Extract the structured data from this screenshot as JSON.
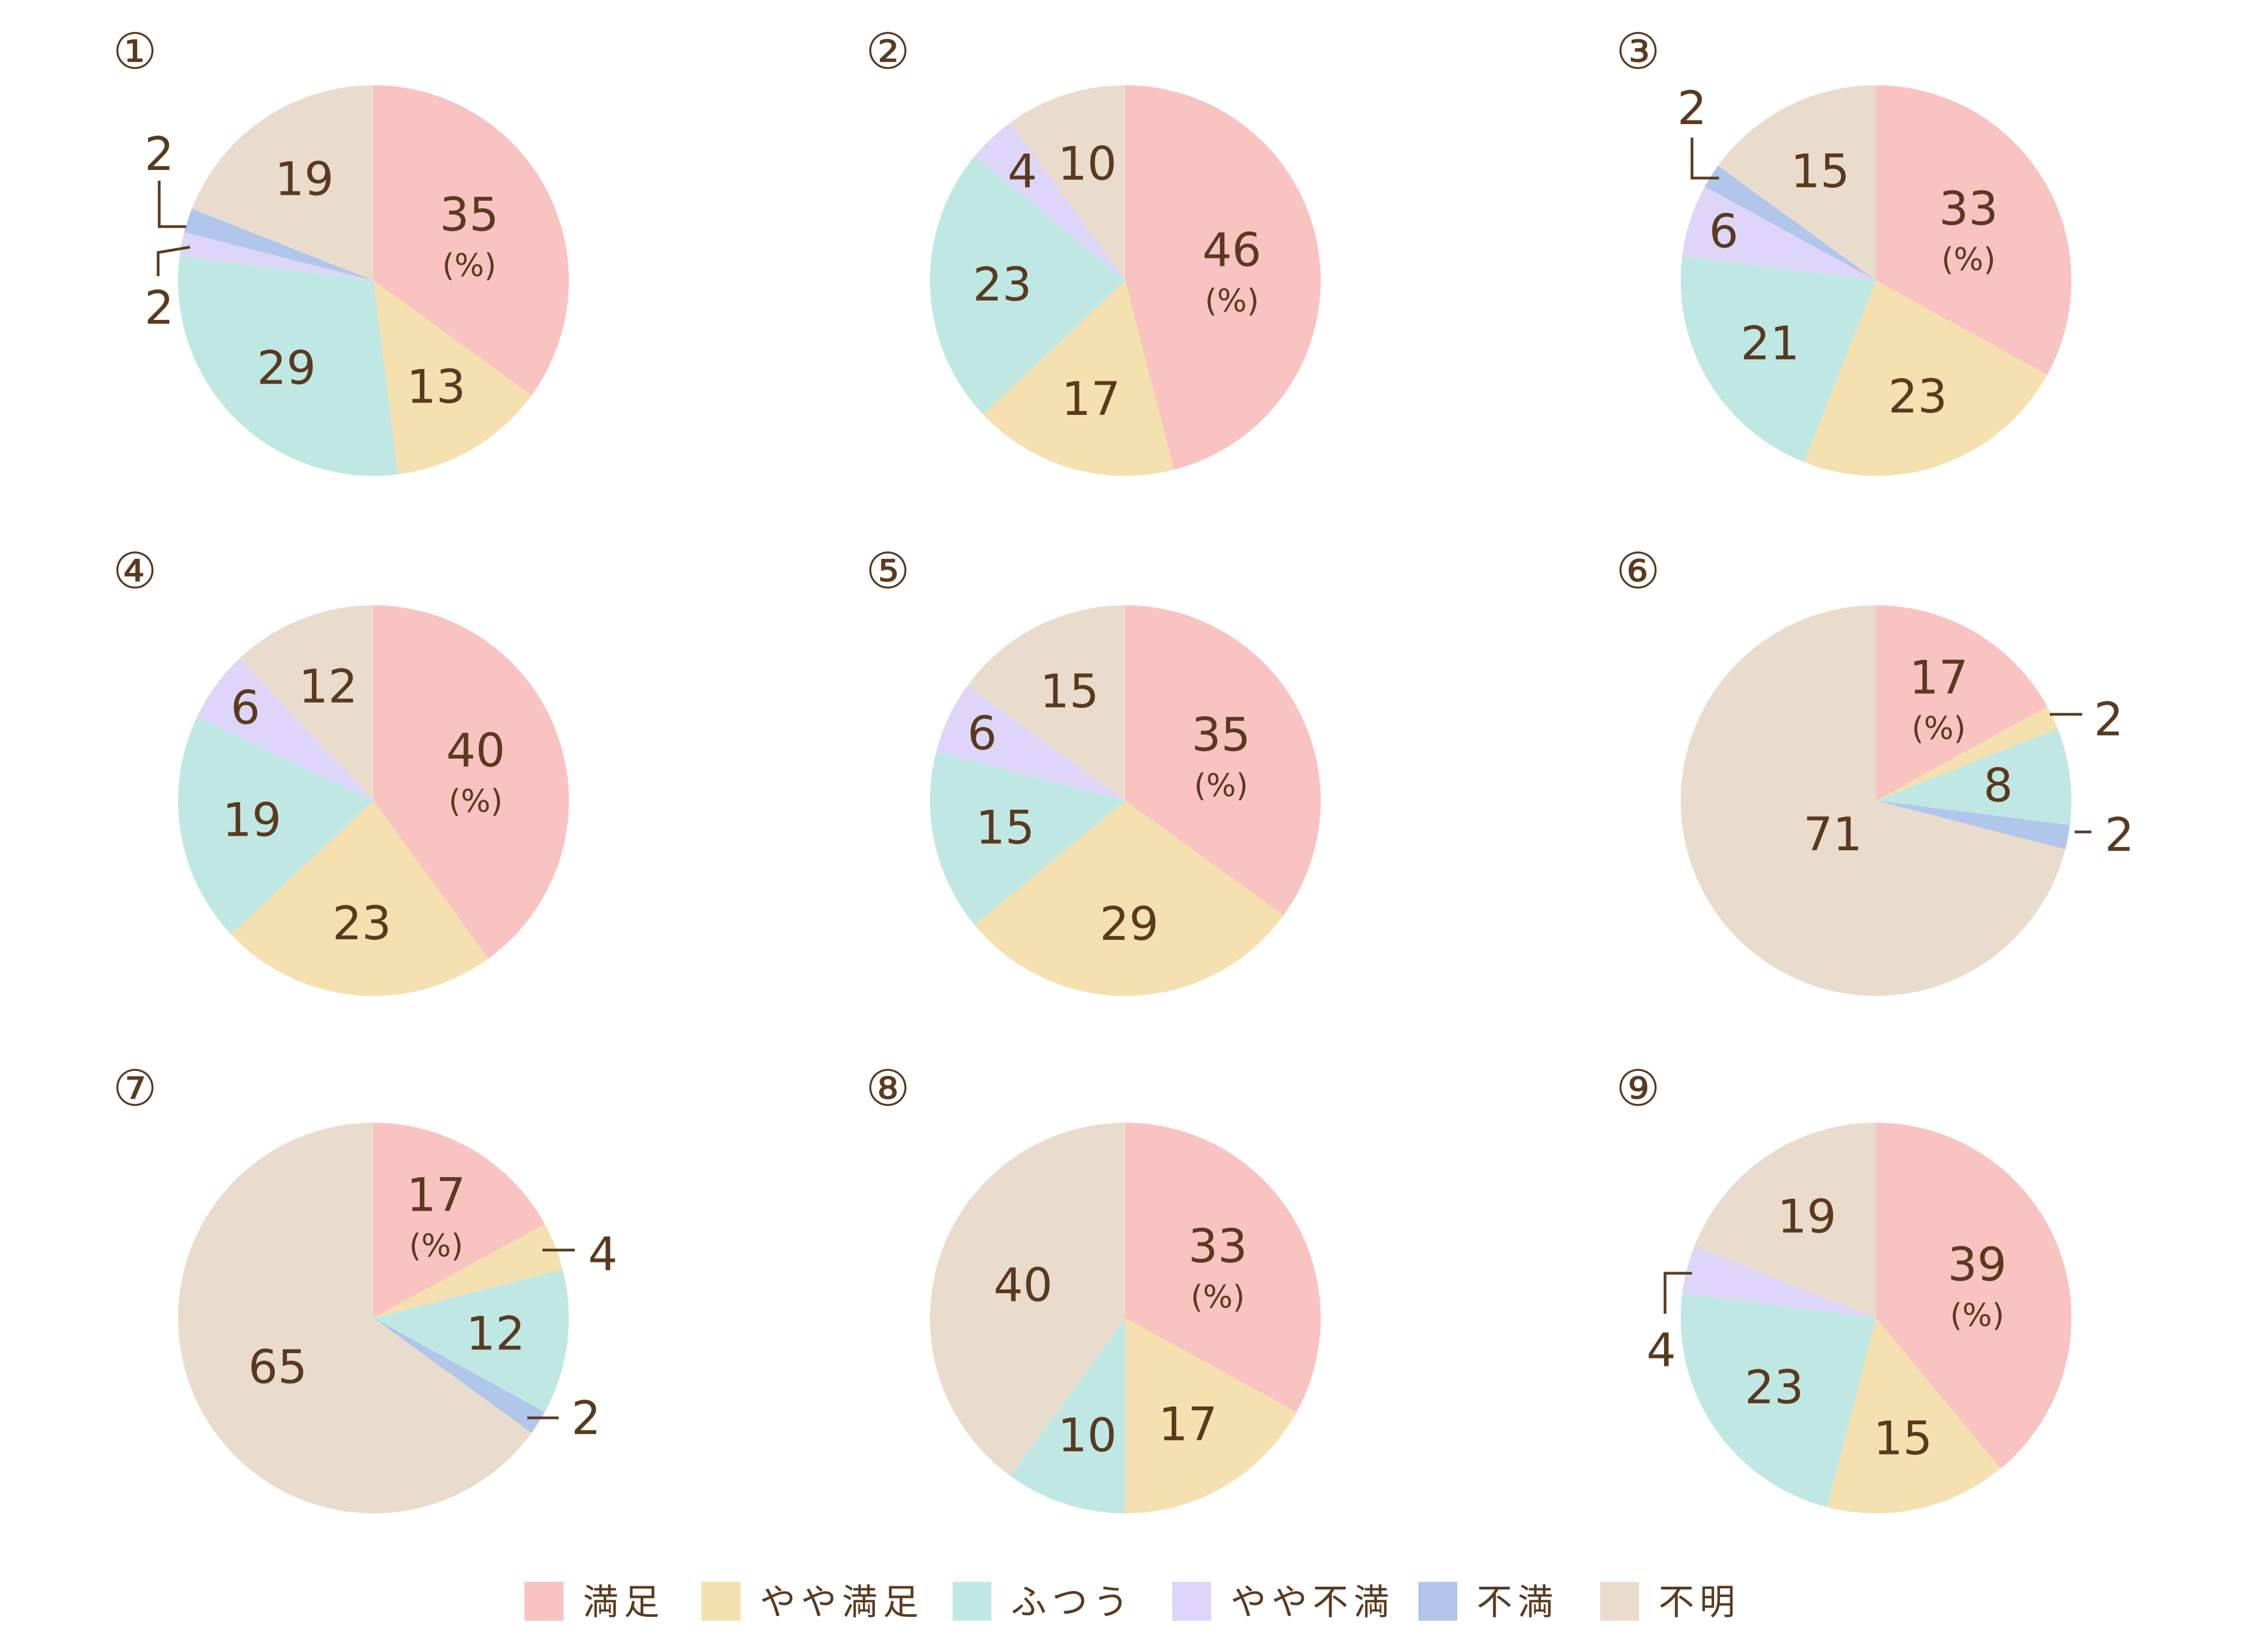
{
  "colors": {
    "満足": "#f8c3c0",
    "やや満足": "#f5e0b0",
    "ふつう": "#bfe8e4",
    "やや不満": "#ddd6f8",
    "不満": "#b0c6ea",
    "不明": "#e9dccd",
    "text": "#5a3a1e"
  },
  "legend": [
    {
      "label": "満足",
      "color": "#f8c3c0"
    },
    {
      "label": "やや満足",
      "color": "#f5e0b0"
    },
    {
      "label": "ふつう",
      "color": "#bfe8e4"
    },
    {
      "label": "やや不満",
      "color": "#ddd6f8"
    },
    {
      "label": "不満",
      "color": "#b0c6ea"
    },
    {
      "label": "不明",
      "color": "#e9dccd"
    }
  ],
  "unit_label": "(%)",
  "chart_data": [
    {
      "type": "pie",
      "title": "①",
      "slices": [
        {
          "category": "満足",
          "value": 35
        },
        {
          "category": "やや満足",
          "value": 13
        },
        {
          "category": "ふつう",
          "value": 29
        },
        {
          "category": "やや不満",
          "value": 2
        },
        {
          "category": "不満",
          "value": 2
        },
        {
          "category": "不明",
          "value": 19
        }
      ]
    },
    {
      "type": "pie",
      "title": "②",
      "slices": [
        {
          "category": "満足",
          "value": 46
        },
        {
          "category": "やや満足",
          "value": 17
        },
        {
          "category": "ふつう",
          "value": 23
        },
        {
          "category": "やや不満",
          "value": 4
        },
        {
          "category": "不明",
          "value": 10
        }
      ]
    },
    {
      "type": "pie",
      "title": "③",
      "slices": [
        {
          "category": "満足",
          "value": 33
        },
        {
          "category": "やや満足",
          "value": 23
        },
        {
          "category": "ふつう",
          "value": 21
        },
        {
          "category": "やや不満",
          "value": 6
        },
        {
          "category": "不満",
          "value": 2
        },
        {
          "category": "不明",
          "value": 15
        }
      ]
    },
    {
      "type": "pie",
      "title": "④",
      "slices": [
        {
          "category": "満足",
          "value": 40
        },
        {
          "category": "やや満足",
          "value": 23
        },
        {
          "category": "ふつう",
          "value": 19
        },
        {
          "category": "やや不満",
          "value": 6
        },
        {
          "category": "不明",
          "value": 12
        }
      ]
    },
    {
      "type": "pie",
      "title": "⑤",
      "slices": [
        {
          "category": "満足",
          "value": 35
        },
        {
          "category": "やや満足",
          "value": 29
        },
        {
          "category": "ふつう",
          "value": 15
        },
        {
          "category": "やや不満",
          "value": 6
        },
        {
          "category": "不明",
          "value": 15
        }
      ]
    },
    {
      "type": "pie",
      "title": "⑥",
      "slices": [
        {
          "category": "満足",
          "value": 17
        },
        {
          "category": "やや満足",
          "value": 2
        },
        {
          "category": "ふつう",
          "value": 8
        },
        {
          "category": "不満",
          "value": 2
        },
        {
          "category": "不明",
          "value": 71
        }
      ]
    },
    {
      "type": "pie",
      "title": "⑦",
      "slices": [
        {
          "category": "満足",
          "value": 17
        },
        {
          "category": "やや満足",
          "value": 4
        },
        {
          "category": "ふつう",
          "value": 12
        },
        {
          "category": "不満",
          "value": 2
        },
        {
          "category": "不明",
          "value": 65
        }
      ]
    },
    {
      "type": "pie",
      "title": "⑧",
      "slices": [
        {
          "category": "満足",
          "value": 33
        },
        {
          "category": "やや満足",
          "value": 17
        },
        {
          "category": "ふつう",
          "value": 10
        },
        {
          "category": "不明",
          "value": 40
        }
      ]
    },
    {
      "type": "pie",
      "title": "⑨",
      "slices": [
        {
          "category": "満足",
          "value": 39
        },
        {
          "category": "やや満足",
          "value": 15
        },
        {
          "category": "ふつう",
          "value": 23
        },
        {
          "category": "やや不満",
          "value": 4
        },
        {
          "category": "不明",
          "value": 19
        }
      ]
    }
  ]
}
